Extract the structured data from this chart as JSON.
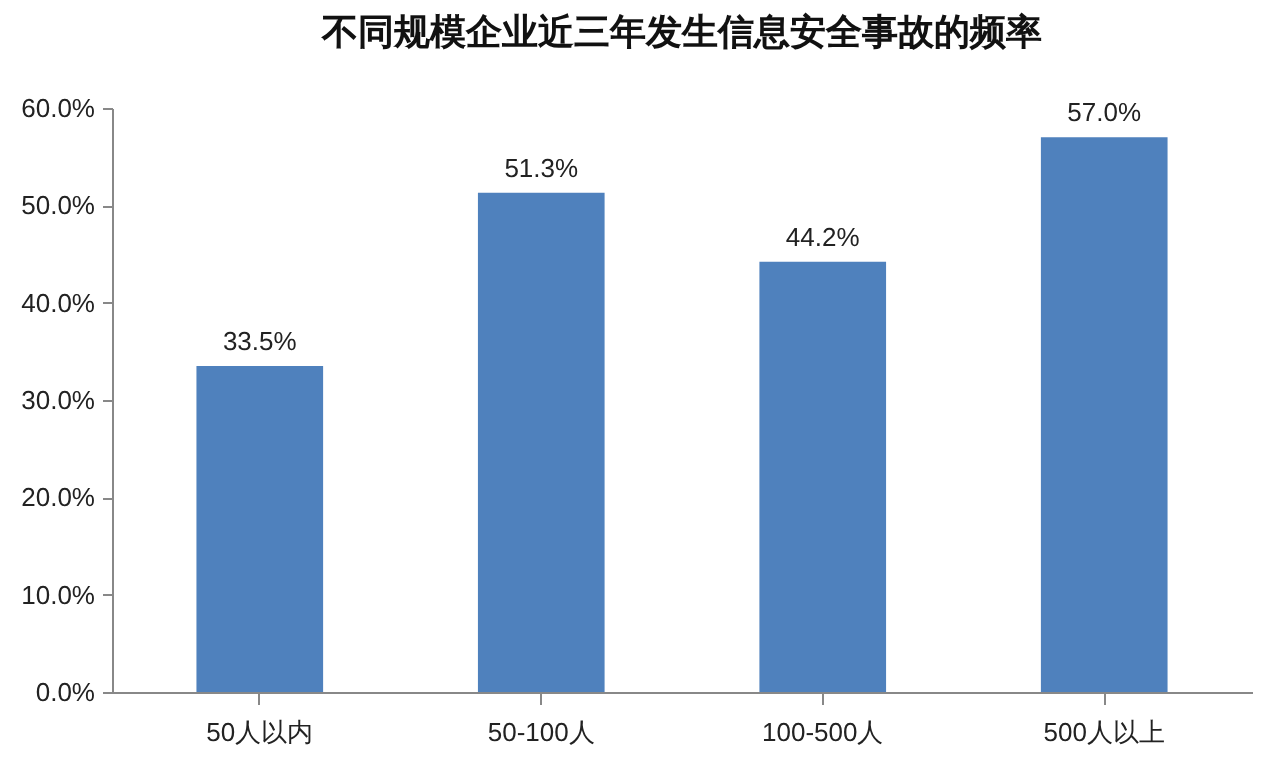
{
  "chart_data": {
    "type": "bar",
    "title": "不同规模企业近三年发生信息安全事故的频率",
    "categories": [
      "50人以内",
      "50-100人",
      "100-500人",
      "500人以上"
    ],
    "values": [
      33.5,
      51.3,
      44.2,
      57.0
    ],
    "value_labels": [
      "33.5%",
      "51.3%",
      "44.2%",
      "57.0%"
    ],
    "color": "#4f81bd",
    "ylim": [
      0,
      60
    ],
    "yticks": [
      {
        "value": 0,
        "label": "0.0%"
      },
      {
        "value": 10,
        "label": "10.0%"
      },
      {
        "value": 20,
        "label": "20.0%"
      },
      {
        "value": 30,
        "label": "30.0%"
      },
      {
        "value": 40,
        "label": "40.0%"
      },
      {
        "value": 50,
        "label": "50.0%"
      },
      {
        "value": 60,
        "label": "60.0%"
      }
    ],
    "grid": false
  }
}
